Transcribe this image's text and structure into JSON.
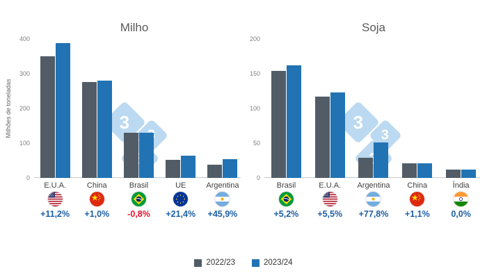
{
  "page": {
    "background": "#ffffff"
  },
  "colors": {
    "series1": "#515c66",
    "series2": "#2173b4",
    "positive_change": "#1d5fa5",
    "negative_change": "#e8112d",
    "watermark": "#8fc0e9",
    "axis_text": "#7f7f7f",
    "category_text": "#404040",
    "title_text": "#595959"
  },
  "legend": {
    "series": [
      {
        "label": "2022/23"
      },
      {
        "label": "2023/24"
      }
    ]
  },
  "watermark": {
    "text": "3"
  },
  "chart_data": [
    {
      "type": "bar",
      "title": "Milho",
      "ylabel": "Milhões de toneladas",
      "xlabel": "",
      "ylim": [
        0,
        400
      ],
      "yticks": [
        0,
        100,
        200,
        300,
        400
      ],
      "grid": false,
      "legend_position": "bottom",
      "categories": [
        "E.U.A.",
        "China",
        "Brasil",
        "UE",
        "Argentina"
      ],
      "flags": [
        "usa",
        "china",
        "brasil",
        "ue",
        "argentina"
      ],
      "series": [
        {
          "name": "2022/23",
          "values": [
            350,
            277,
            131,
            53,
            38
          ]
        },
        {
          "name": "2023/24",
          "values": [
            389,
            280,
            130,
            64,
            55
          ]
        }
      ],
      "changes": [
        {
          "label": "+11,2%",
          "tone": "positive"
        },
        {
          "label": "+1,0%",
          "tone": "positive"
        },
        {
          "label": "-0,8%",
          "tone": "negative"
        },
        {
          "label": "+21,4%",
          "tone": "positive"
        },
        {
          "label": "+45,9%",
          "tone": "positive"
        }
      ]
    },
    {
      "type": "bar",
      "title": "Soja",
      "ylabel": "",
      "xlabel": "",
      "ylim": [
        0,
        200
      ],
      "yticks": [
        0,
        50,
        100,
        150,
        200
      ],
      "grid": false,
      "legend_position": "bottom",
      "categories": [
        "Brasil",
        "E.U.A.",
        "Argentina",
        "China",
        "Índia"
      ],
      "flags": [
        "brasil",
        "usa",
        "argentina",
        "china",
        "india"
      ],
      "series": [
        {
          "name": "2022/23",
          "values": [
            154,
            117,
            29,
            21,
            12
          ]
        },
        {
          "name": "2023/24",
          "values": [
            162,
            123,
            51,
            21,
            12
          ]
        }
      ],
      "changes": [
        {
          "label": "+5,2%",
          "tone": "positive"
        },
        {
          "label": "+5,5%",
          "tone": "positive"
        },
        {
          "label": "+77,8%",
          "tone": "positive"
        },
        {
          "label": "+1,1%",
          "tone": "positive"
        },
        {
          "label": "0,0%",
          "tone": "positive"
        }
      ]
    }
  ]
}
